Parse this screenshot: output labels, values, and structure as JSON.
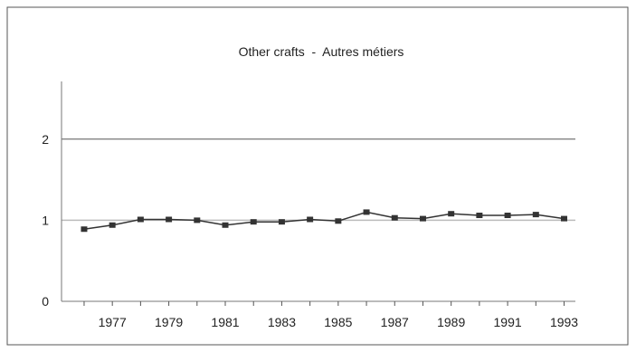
{
  "chart_data": {
    "type": "line",
    "title": "Other crafts  -  Autres métiers",
    "xlabel": "",
    "ylabel": "",
    "x": [
      1976,
      1977,
      1978,
      1979,
      1980,
      1981,
      1982,
      1983,
      1984,
      1985,
      1986,
      1987,
      1988,
      1989,
      1990,
      1991,
      1992,
      1993
    ],
    "x_tick_labels": [
      "1977",
      "1979",
      "1981",
      "1983",
      "1985",
      "1987",
      "1989",
      "1991",
      "1993"
    ],
    "y_ticks": [
      0,
      1,
      2
    ],
    "ylim": [
      0,
      2.6
    ],
    "xlim": [
      1975.2,
      1993.4
    ],
    "grid": "horizontal",
    "legend": "none",
    "series": [
      {
        "values": [
          0.89,
          0.94,
          1.01,
          1.01,
          1.0,
          0.94,
          0.98,
          0.98,
          1.01,
          0.99,
          1.1,
          1.03,
          1.02,
          1.08,
          1.06,
          1.06,
          1.07,
          1.02
        ],
        "color": "#333333"
      }
    ],
    "colors": {
      "background": "#ffffff",
      "frame": "#555555",
      "grid": "#555555",
      "reference": "#bbbbbb"
    }
  }
}
